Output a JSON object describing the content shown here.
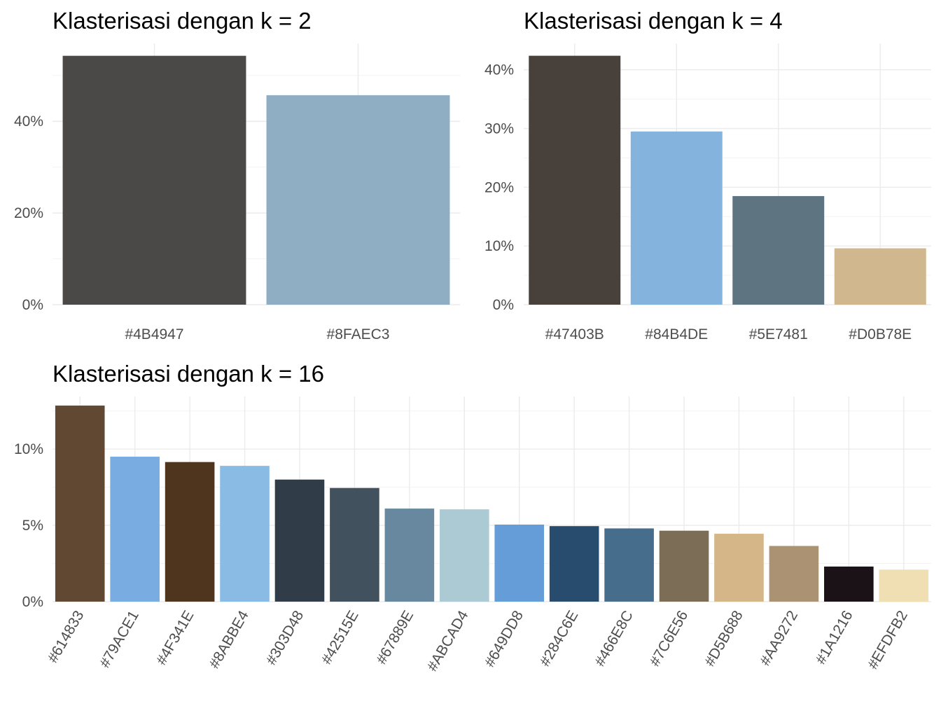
{
  "chart_data": [
    {
      "type": "bar",
      "title": "Klasterisasi dengan k = 2",
      "xlabel": "",
      "ylabel": "",
      "categories": [
        "#4B4947",
        "#8FAEC3"
      ],
      "values": [
        54.3,
        45.7
      ],
      "colors": [
        "#4B4947",
        "#8FAEC3"
      ],
      "yticks": [
        0,
        20,
        40
      ],
      "ytick_labels": [
        "0%",
        "20%",
        "40%"
      ],
      "ylim": [
        0,
        57
      ],
      "grid": true,
      "x_label_rotation": 0
    },
    {
      "type": "bar",
      "title": "Klasterisasi dengan k = 4",
      "xlabel": "",
      "ylabel": "",
      "categories": [
        "#47403B",
        "#84B4DE",
        "#5E7481",
        "#D0B78E"
      ],
      "values": [
        42.4,
        29.5,
        18.5,
        9.6
      ],
      "colors": [
        "#47403B",
        "#84B4DE",
        "#5E7481",
        "#D0B78E"
      ],
      "yticks": [
        0,
        10,
        20,
        30,
        40
      ],
      "ytick_labels": [
        "0%",
        "10%",
        "20%",
        "30%",
        "40%"
      ],
      "ylim": [
        0,
        44.5
      ],
      "grid": true,
      "x_label_rotation": 0
    },
    {
      "type": "bar",
      "title": "Klasterisasi dengan k = 16",
      "xlabel": "",
      "ylabel": "",
      "categories": [
        "#614833",
        "#79ACE1",
        "#4F341E",
        "#8ABBE4",
        "#303D48",
        "#42515E",
        "#67889E",
        "#ABCAD4",
        "#649DD8",
        "#284C6E",
        "#466E8C",
        "#7C6E56",
        "#D5B688",
        "#AA9272",
        "#1A1216",
        "#EFDFB2"
      ],
      "values": [
        12.85,
        9.5,
        9.15,
        8.9,
        8.0,
        7.45,
        6.1,
        6.05,
        5.05,
        4.95,
        4.8,
        4.65,
        4.45,
        3.65,
        2.3,
        2.1
      ],
      "colors": [
        "#614833",
        "#79ACE1",
        "#4F341E",
        "#8ABBE4",
        "#303D48",
        "#42515E",
        "#67889E",
        "#ABCAD4",
        "#649DD8",
        "#284C6E",
        "#466E8C",
        "#7C6E56",
        "#D5B688",
        "#AA9272",
        "#1A1216",
        "#EFDFB2"
      ],
      "yticks": [
        0,
        5,
        10
      ],
      "ytick_labels": [
        "0%",
        "5%",
        "10%"
      ],
      "ylim": [
        0,
        13.45
      ],
      "grid": true,
      "x_label_rotation": -60
    }
  ]
}
